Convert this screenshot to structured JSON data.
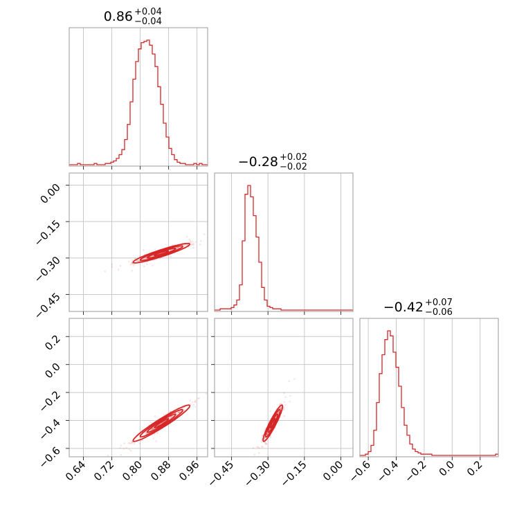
{
  "chart_data": {
    "type": "corner",
    "color": "#d62728",
    "parameters": [
      {
        "index": 0,
        "title": {
          "median": "0.86",
          "plus": "+0.04",
          "minus": "−0.04"
        },
        "range": [
          0.6,
          0.99
        ],
        "ticks": [
          0.64,
          0.72,
          0.8,
          0.88,
          0.96
        ],
        "tick_labels": [
          "0.64",
          "0.72",
          "0.80",
          "0.88",
          "0.96"
        ],
        "median": 0.86,
        "sigma": 0.04
      },
      {
        "index": 1,
        "title": {
          "median": "−0.28",
          "plus": "+0.02",
          "minus": "−0.02"
        },
        "range": [
          -0.52,
          0.05
        ],
        "ticks": [
          -0.45,
          -0.3,
          -0.15,
          0.0
        ],
        "tick_labels": [
          "−0.45",
          "−0.30",
          "−0.15",
          "0.00"
        ],
        "median": -0.28,
        "sigma": 0.02
      },
      {
        "index": 2,
        "title": {
          "median": "−0.42",
          "plus": "+0.07",
          "minus": "−0.06"
        },
        "range": [
          -0.66,
          0.33
        ],
        "ticks": [
          -0.6,
          -0.4,
          -0.2,
          0.0,
          0.2
        ],
        "tick_labels": [
          "−0.6",
          "−0.4",
          "−0.2",
          "0.0",
          "0.2"
        ],
        "median": -0.42,
        "sigma": 0.065
      }
    ],
    "y_axis_labels": {
      "row1": {
        "ticks": [
          0.0,
          -0.15,
          -0.3,
          -0.45
        ],
        "tick_labels": [
          "0.00",
          "−0.15",
          "−0.30",
          "−0.45"
        ]
      },
      "row2": {
        "ticks": [
          0.2,
          0.0,
          -0.2,
          -0.4,
          -0.6
        ],
        "tick_labels": [
          "0.2",
          "0.0",
          "−0.2",
          "−0.4",
          "−0.6"
        ]
      }
    },
    "histograms": {
      "p0": {
        "edges_start": 0.6,
        "bin_width": 0.0078,
        "counts": [
          0,
          0,
          0,
          1,
          0,
          0,
          0,
          0,
          0,
          1,
          0,
          0,
          0,
          1,
          1,
          2,
          3,
          5,
          8,
          12,
          20,
          32,
          50,
          68,
          82,
          92,
          97,
          98,
          99,
          95,
          88,
          78,
          62,
          48,
          33,
          22,
          13,
          8,
          4,
          2,
          1,
          1,
          0,
          0,
          0,
          1,
          0,
          1,
          0,
          0
        ]
      },
      "p1": {
        "edges_start": -0.52,
        "bin_width": 0.0114,
        "counts": [
          0,
          0,
          1,
          1,
          1,
          1,
          2,
          4,
          8,
          20,
          55,
          92,
          99,
          90,
          75,
          58,
          38,
          18,
          8,
          3,
          2,
          1,
          1,
          1,
          0,
          0,
          0,
          0,
          0,
          0,
          0,
          0,
          0,
          0,
          0,
          0,
          0,
          0,
          0,
          0,
          0,
          0,
          0,
          0,
          0,
          0,
          0,
          0,
          0,
          0
        ]
      },
      "p2": {
        "edges_start": -0.66,
        "bin_width": 0.0198,
        "counts": [
          0,
          0,
          1,
          3,
          8,
          20,
          42,
          65,
          80,
          92,
          99,
          95,
          82,
          70,
          55,
          38,
          24,
          16,
          9,
          5,
          3,
          2,
          1,
          1,
          1,
          1,
          0,
          0,
          0,
          0,
          0,
          0,
          0,
          0,
          0,
          0,
          0,
          0,
          0,
          0,
          0,
          0,
          0,
          0,
          0,
          0,
          0,
          0,
          0,
          1
        ]
      }
    },
    "correlations": {
      "p0_p1": 0.93,
      "p0_p2": 0.96,
      "p1_p2": 0.93
    },
    "grid": true
  }
}
